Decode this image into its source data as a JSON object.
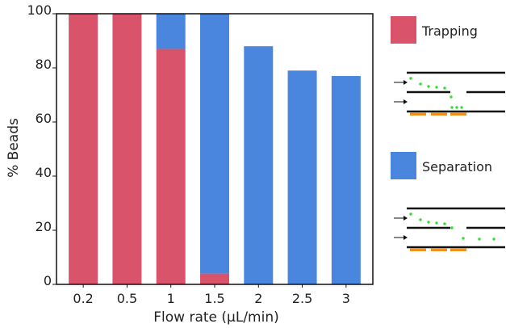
{
  "chart_data": {
    "type": "bar",
    "stacked": true,
    "categories": [
      "0.2",
      "0.5",
      "1",
      "1.5",
      "2",
      "2.5",
      "3"
    ],
    "series": [
      {
        "name": "Trapping",
        "color": "#d9546a",
        "values": [
          100,
          100,
          87,
          4,
          0,
          0,
          0
        ]
      },
      {
        "name": "Separation",
        "color": "#4a86de",
        "values": [
          0,
          0,
          13,
          96,
          88,
          79,
          77
        ]
      }
    ],
    "xlabel": "Flow rate (μL/min)",
    "ylabel": "% Beads",
    "ylim": [
      0,
      100
    ],
    "yticks": [
      0,
      20,
      40,
      60,
      80,
      100
    ],
    "grid": false,
    "legend_position": "right"
  },
  "schematic": {
    "particle_color": "#33dd33",
    "electrode_color": "#f0901e",
    "channel_color": "#111111",
    "arrow_color": "#111111"
  }
}
